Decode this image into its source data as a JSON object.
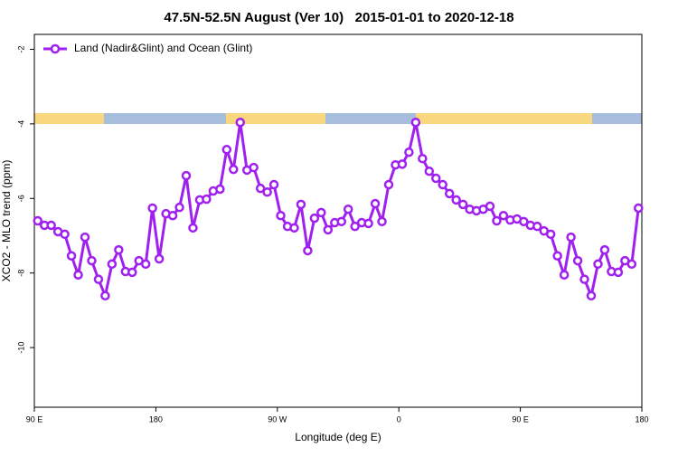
{
  "chart_data": {
    "type": "line",
    "title": "47.5N-52.5N August (Ver 10)   2015-01-01 to 2020-12-18",
    "xlabel": "Longitude (deg E)",
    "ylabel": "XCO2 - MLO trend (ppm)",
    "legend": "top-left",
    "x": [
      92.5,
      97.5,
      102.5,
      107.5,
      112.5,
      117.5,
      122.5,
      127.5,
      132.5,
      137.5,
      142.5,
      147.5,
      152.5,
      157.5,
      162.5,
      167.5,
      172.5,
      177.5,
      182.5,
      187.5,
      192.5,
      197.5,
      202.5,
      207.5,
      212.5,
      217.5,
      222.5,
      227.5,
      232.5,
      237.5,
      242.5,
      247.5,
      252.5,
      257.5,
      262.5,
      267.5,
      272.5,
      277.5,
      282.5,
      287.5,
      292.5,
      297.5,
      302.5,
      307.5,
      312.5,
      317.5,
      322.5,
      327.5,
      332.5,
      337.5,
      342.5,
      347.5,
      352.5,
      357.5,
      362.5,
      367.5,
      372.5,
      377.5,
      382.5,
      387.5,
      392.5,
      397.5,
      402.5,
      407.5,
      412.5,
      417.5,
      422.5,
      427.5,
      432.5,
      437.5,
      442.5,
      447.5,
      452.5,
      457.5,
      462.5,
      467.5,
      472.5,
      477.5,
      482.5,
      487.5,
      492.5,
      497.5,
      502.5,
      507.5,
      512.5,
      517.5,
      522.5,
      527.5,
      532.5,
      537.5
    ],
    "series": [
      {
        "name": "Land (Nadir&Glint) and Ocean (Glint)",
        "color": "#a020f0",
        "values": [
          -6.6,
          -6.72,
          -6.72,
          -6.89,
          -6.96,
          -7.54,
          -8.05,
          -7.04,
          -7.67,
          -8.17,
          -8.61,
          -7.76,
          -7.38,
          -7.96,
          -7.98,
          -7.67,
          -7.76,
          -6.26,
          -7.62,
          -6.41,
          -6.46,
          -6.24,
          -5.39,
          -6.79,
          -6.04,
          -6.02,
          -5.8,
          -5.75,
          -4.69,
          -5.22,
          -3.96,
          -5.24,
          -5.17,
          -5.73,
          -5.83,
          -5.63,
          -6.46,
          -6.75,
          -6.79,
          -6.16,
          -7.4,
          -6.53,
          -6.38,
          -6.84,
          -6.65,
          -6.62,
          -6.29,
          -6.75,
          -6.65,
          -6.67,
          -6.14,
          -6.62,
          -5.63,
          -5.1,
          -5.08,
          -4.76,
          -3.96,
          -4.93,
          -5.27,
          -5.46,
          -5.63,
          -5.87,
          -6.04,
          -6.16,
          -6.29,
          -6.33,
          -6.29,
          -6.21,
          -6.6,
          -6.46,
          -6.58,
          -6.55,
          -6.62,
          -6.72,
          -6.75,
          -6.87,
          -6.96,
          -7.54,
          -8.05,
          -7.04,
          -7.67,
          -8.17,
          -8.61,
          -7.76,
          -7.38,
          -7.96,
          -7.98,
          -7.67,
          -7.76,
          -6.26
        ]
      }
    ],
    "xlim": [
      90,
      540
    ],
    "xticks": [
      {
        "value": 90,
        "label": "90 E"
      },
      180,
      {
        "value": 270,
        "label": "90 W"
      },
      {
        "value": 360,
        "label": "0"
      },
      {
        "value": 450,
        "label": "90 E"
      },
      {
        "value": 540,
        "label": "180"
      }
    ],
    "ylim": [
      -11.6,
      -1.6
    ],
    "yticks": [
      -2,
      -4,
      -6,
      -8,
      -10
    ]
  }
}
